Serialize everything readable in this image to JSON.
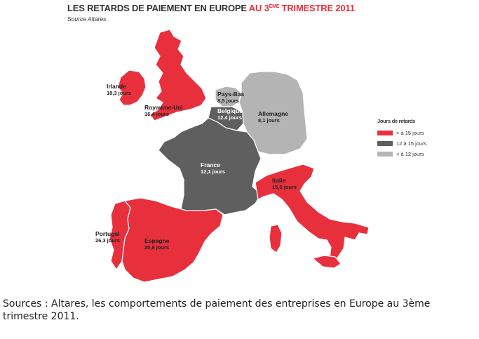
{
  "title": {
    "part1": "LES RETARDS DE PAIEMENT EN EUROPE ",
    "part2": "AU 3",
    "part2_sup": "ÈME",
    "part3": " TRIMESTRE 2011"
  },
  "source_note": "Source Altares",
  "colors": {
    "high": "#e8303d",
    "mid": "#5f5f5f",
    "low": "#b4b4b4"
  },
  "legend": {
    "title": "Jours de retards",
    "items": [
      {
        "key": "high",
        "label": "> à 15 jours"
      },
      {
        "key": "mid",
        "label": "12 à 15 jours"
      },
      {
        "key": "low",
        "label": "< à 12 jours"
      }
    ]
  },
  "countries": [
    {
      "id": "irlande",
      "name": "Irlande",
      "value": "18,3 jours",
      "category": "high"
    },
    {
      "id": "royaume-uni",
      "name": "Royaume-Uni",
      "value": "16,4 jours",
      "category": "high"
    },
    {
      "id": "pays-bas",
      "name": "Pays-Bas",
      "value": "8,5 jours",
      "category": "low"
    },
    {
      "id": "belgique",
      "name": "Belgique",
      "value": "12,4 jours",
      "category": "mid"
    },
    {
      "id": "allemagne",
      "name": "Allemagne",
      "value": "8,1 jours",
      "category": "low"
    },
    {
      "id": "france",
      "name": "France",
      "value": "12,1 jours",
      "category": "mid"
    },
    {
      "id": "italie",
      "name": "Italie",
      "value": "15,5 jours",
      "category": "high"
    },
    {
      "id": "portugal",
      "name": "Portugal",
      "value": "26,3 jours",
      "category": "high"
    },
    {
      "id": "espagne",
      "name": "Espagne",
      "value": "20,8 jours",
      "category": "high"
    }
  ],
  "caption": "Sources : Altares, les comportements de paiement des entreprises en Europe au 3ème trimestre 2011."
}
